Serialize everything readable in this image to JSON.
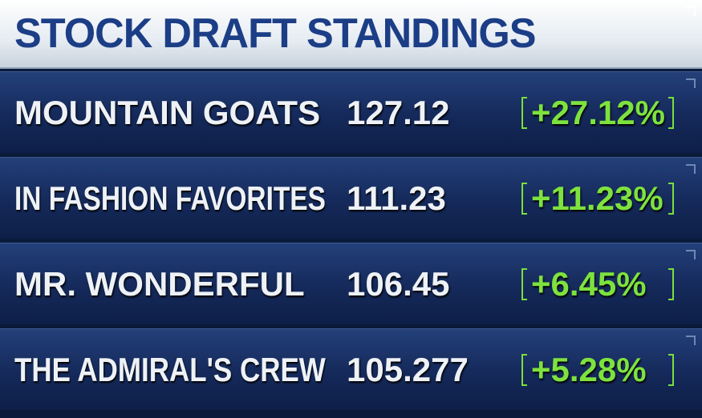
{
  "header": {
    "title": "STOCK DRAFT STANDINGS"
  },
  "table": {
    "rows": [
      [
        "MOUNTAIN GOATS",
        "127.12",
        "+27.12%"
      ],
      [
        "IN FASHION FAVORITES",
        "111.23",
        "+11.23%"
      ],
      [
        "MR. WONDERFUL",
        "106.45",
        "+6.45%"
      ],
      [
        "THE ADMIRAL'S CREW",
        "105.277",
        "+5.28%"
      ]
    ]
  }
}
